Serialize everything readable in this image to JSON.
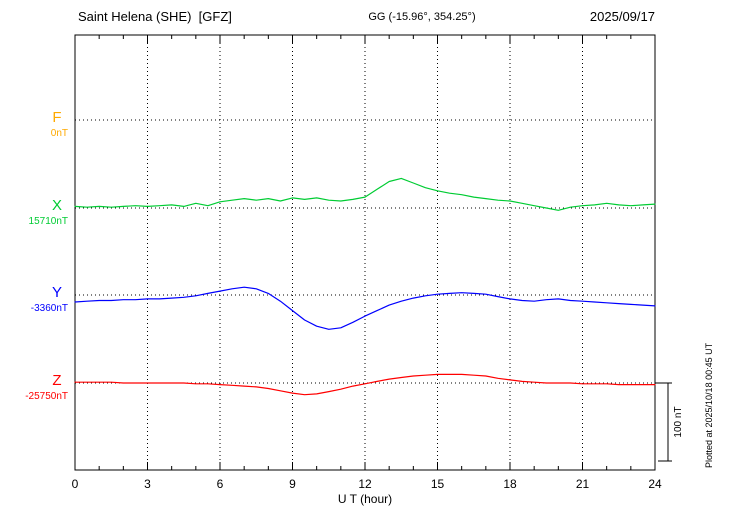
{
  "chart_data": {
    "type": "line",
    "station": "Saint Helena (SHE)  [GFZ]",
    "coords": "GG (-15.96°, 354.25°)",
    "date": "2025/09/17",
    "xlabel": "U T (hour)",
    "xlim": [
      0,
      24
    ],
    "x_ticks": [
      0,
      3,
      6,
      9,
      12,
      15,
      18,
      21,
      24
    ],
    "x_minor_step_hours": 1,
    "sample_step_hours": 0.5,
    "grid": "dotted",
    "scale_bar": {
      "label": "100 nT",
      "nT": 100
    },
    "plotted_at": "Plotted at 2025/10/18 00:45 UT",
    "series": [
      {
        "name": "F",
        "color": "#FFAA00",
        "baseline_label": "0nT",
        "baseline_nT": 0,
        "data_present": false,
        "deviation_nT": []
      },
      {
        "name": "X",
        "color": "#00CC33",
        "baseline_label": "15710nT",
        "baseline_nT": 15710,
        "data_present": true,
        "deviation_nT": [
          2,
          1,
          2,
          1,
          2,
          3,
          2,
          3,
          4,
          2,
          6,
          3,
          8,
          10,
          12,
          10,
          12,
          9,
          13,
          11,
          13,
          10,
          9,
          11,
          14,
          24,
          34,
          38,
          32,
          26,
          22,
          19,
          17,
          14,
          12,
          10,
          9,
          6,
          3,
          0,
          -3,
          1,
          3,
          4,
          6,
          4,
          3,
          4,
          5
        ]
      },
      {
        "name": "Y",
        "color": "#0000FF",
        "baseline_label": "-3360nT",
        "baseline_nT": -3360,
        "data_present": true,
        "deviation_nT": [
          -9,
          -8,
          -7,
          -7,
          -6,
          -6,
          -5,
          -5,
          -4,
          -3,
          -1,
          2,
          5,
          8,
          10,
          8,
          2,
          -8,
          -20,
          -32,
          -40,
          -44,
          -42,
          -35,
          -27,
          -20,
          -13,
          -8,
          -4,
          -1,
          1,
          2,
          3,
          2,
          1,
          -2,
          -5,
          -7,
          -8,
          -6,
          -5,
          -7,
          -8,
          -9,
          -10,
          -11,
          -12,
          -13,
          -14
        ]
      },
      {
        "name": "Z",
        "color": "#FF0000",
        "baseline_label": "-25750nT",
        "baseline_nT": -25750,
        "data_present": true,
        "deviation_nT": [
          1,
          1,
          1,
          1,
          0,
          0,
          0,
          0,
          0,
          0,
          -1,
          -1,
          -2,
          -3,
          -4,
          -5,
          -7,
          -10,
          -13,
          -15,
          -14,
          -11,
          -8,
          -4,
          -1,
          2,
          5,
          7,
          9,
          10,
          11,
          11,
          11,
          10,
          9,
          6,
          4,
          2,
          1,
          0,
          0,
          0,
          -1,
          -1,
          -1,
          -2,
          -2,
          -2,
          -2
        ]
      }
    ]
  }
}
